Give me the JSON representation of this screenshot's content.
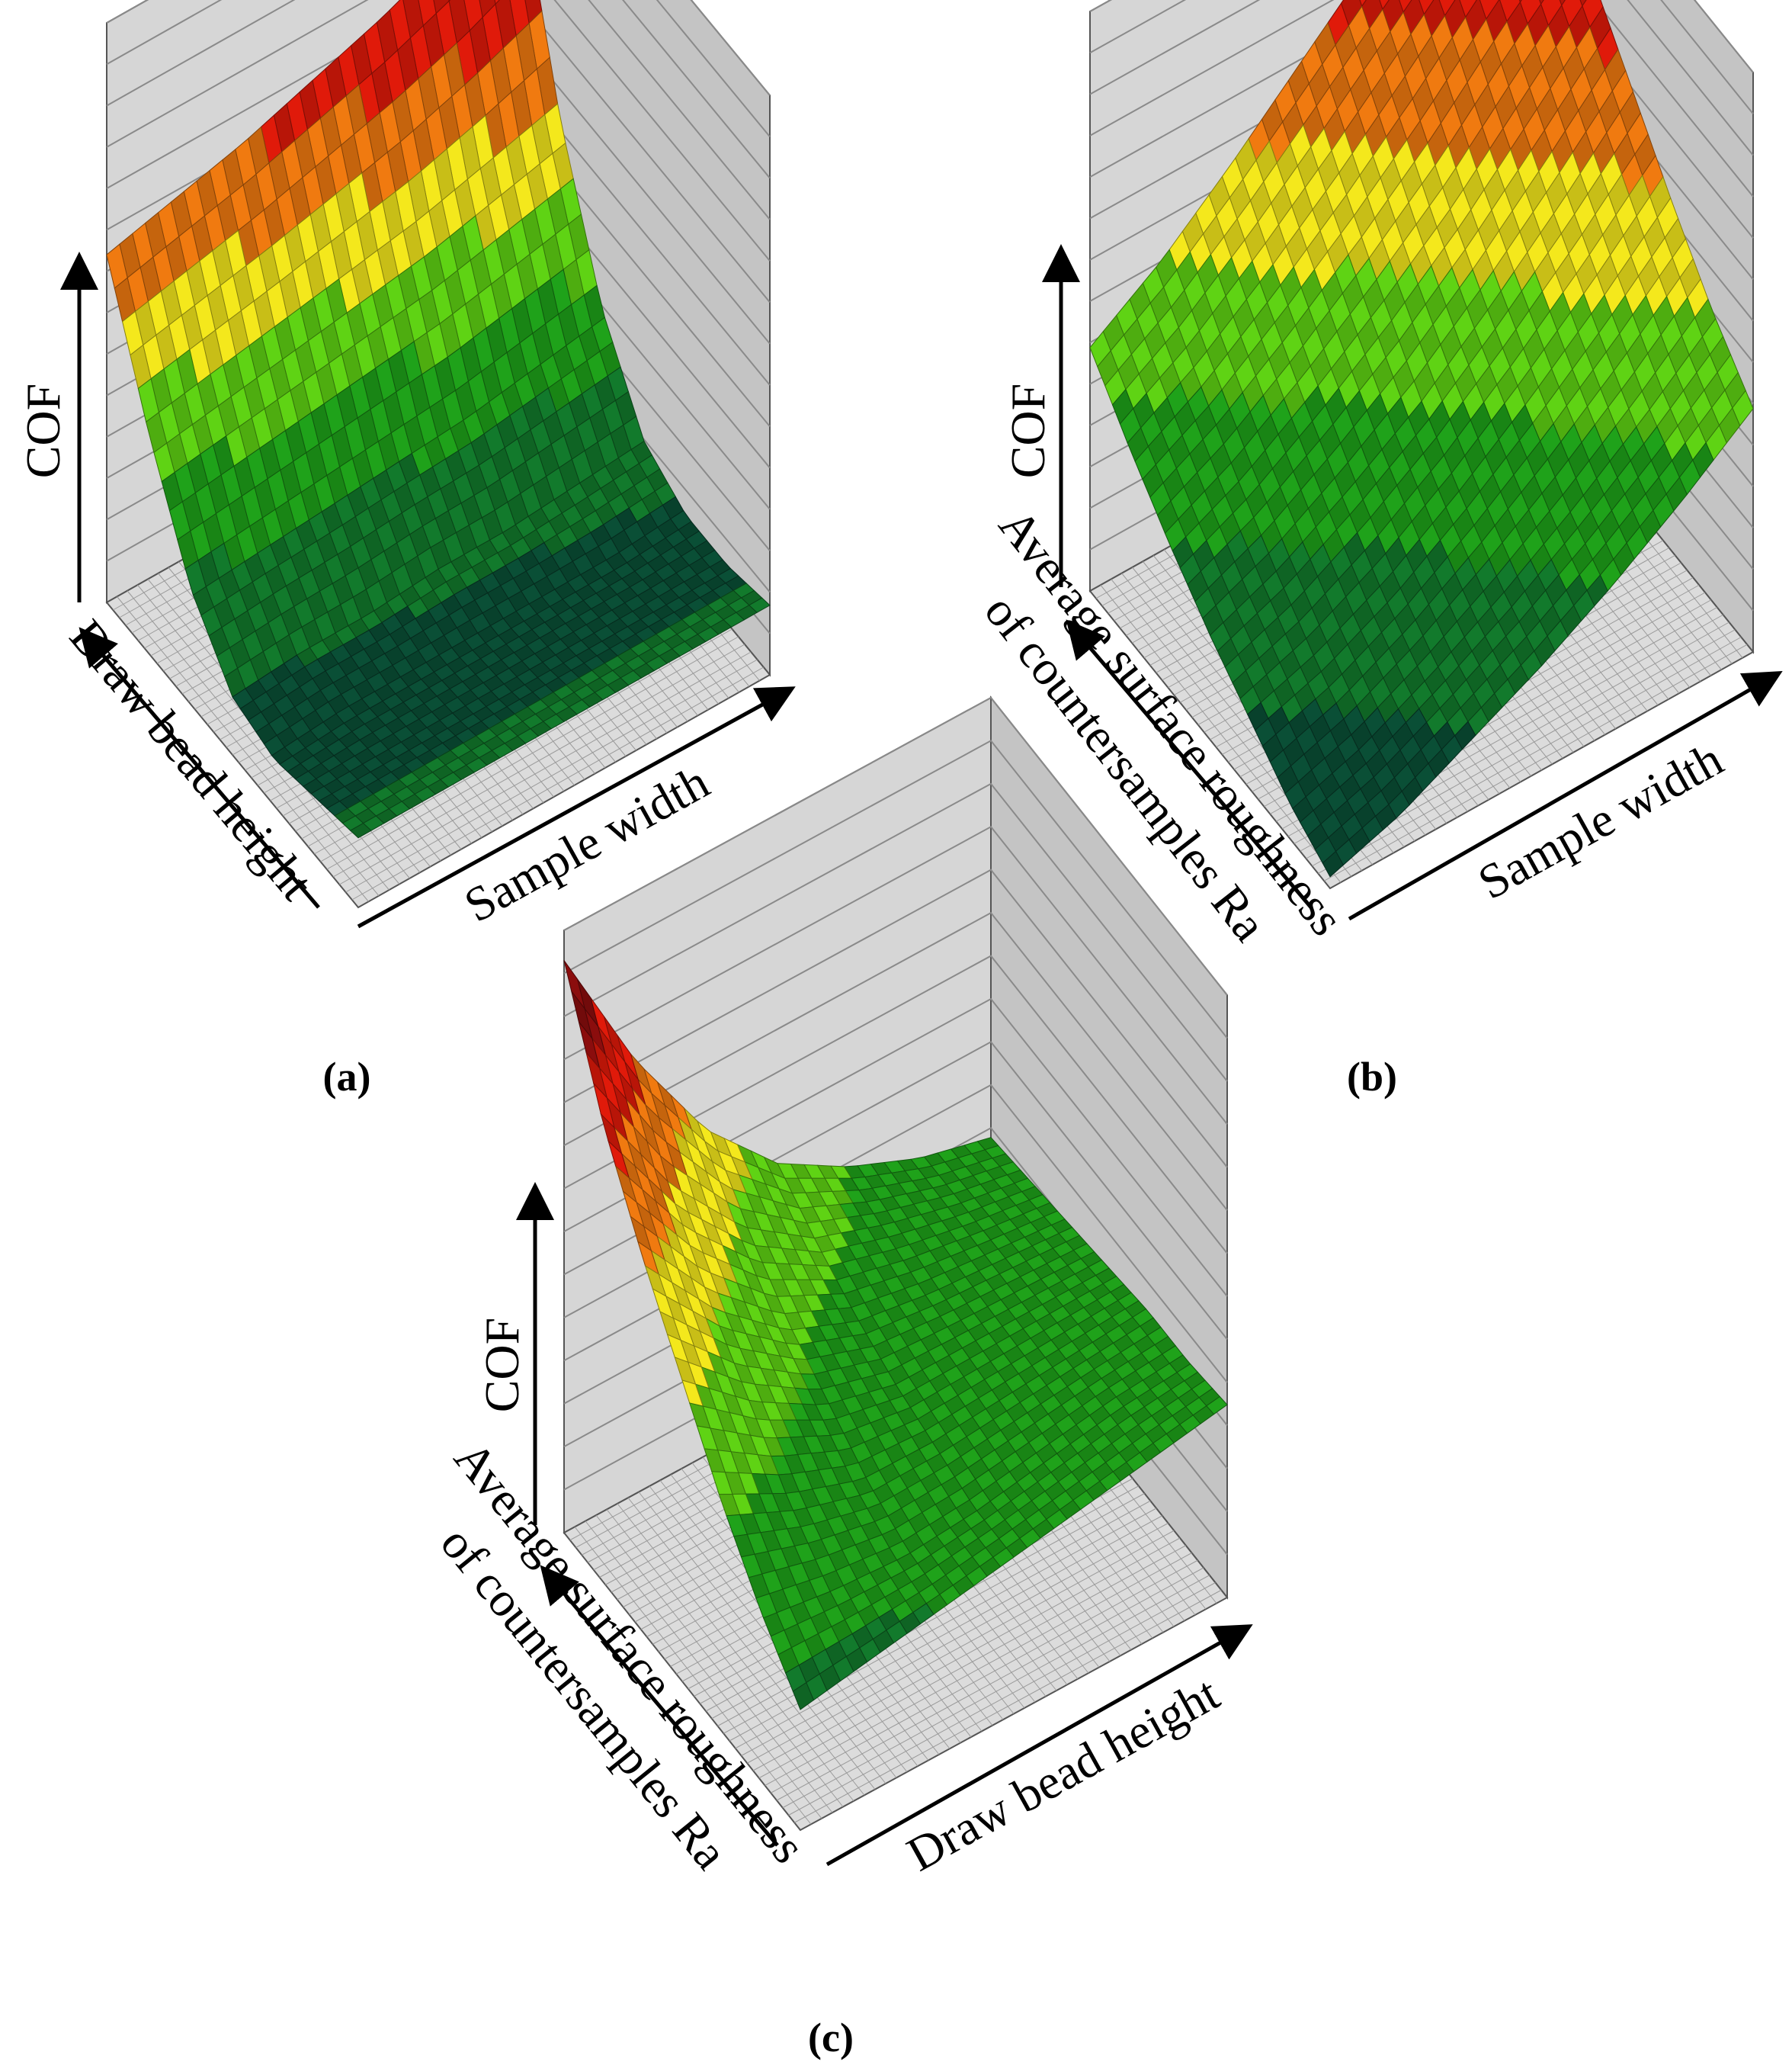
{
  "chart_data": [
    {
      "id": "a",
      "type": "surface",
      "caption": "(a)",
      "zlabel": "COF",
      "axis_left_label": "Draw bead height",
      "axis_right_label": "Sample width",
      "colorscale": [
        "#0a4f36",
        "#127a2c",
        "#1fa21a",
        "#5fd314",
        "#f4e81c",
        "#f07a10",
        "#e01a0a",
        "#8b0d0d"
      ],
      "description_of_trend": "COF rises strongly with draw bead height, nearly independent of sample width",
      "grid_z": [
        [
          0.12,
          0.12,
          0.12,
          0.12,
          0.12,
          0.12,
          0.12
        ],
        [
          0.1,
          0.1,
          0.1,
          0.1,
          0.1,
          0.1,
          0.1
        ],
        [
          0.08,
          0.09,
          0.09,
          0.09,
          0.09,
          0.09,
          0.1
        ],
        [
          0.1,
          0.11,
          0.11,
          0.12,
          0.12,
          0.13,
          0.14
        ],
        [
          0.2,
          0.21,
          0.22,
          0.23,
          0.24,
          0.26,
          0.28
        ],
        [
          0.38,
          0.4,
          0.42,
          0.44,
          0.46,
          0.49,
          0.52
        ],
        [
          0.6,
          0.63,
          0.66,
          0.7,
          0.74,
          0.79,
          0.86
        ]
      ]
    },
    {
      "id": "b",
      "type": "surface",
      "caption": "(b)",
      "zlabel": "COF",
      "axis_left_label": "Average surface roughness of countersamples Ra",
      "axis_left_lines": [
        "Average surface roughness",
        "of countersamples Ra"
      ],
      "axis_right_label": "Sample width",
      "colorscale": [
        "#0a4f36",
        "#127a2c",
        "#1fa21a",
        "#5fd314",
        "#f4e81c",
        "#f07a10",
        "#e01a0a",
        "#8b0d0d"
      ],
      "description_of_trend": "COF increases with both surface roughness and sample width, maximum at the far corner",
      "grid_z": [
        [
          0.02,
          0.06,
          0.12,
          0.18,
          0.25,
          0.33,
          0.42
        ],
        [
          0.06,
          0.1,
          0.16,
          0.23,
          0.31,
          0.4,
          0.5
        ],
        [
          0.12,
          0.16,
          0.22,
          0.3,
          0.39,
          0.49,
          0.6
        ],
        [
          0.18,
          0.23,
          0.3,
          0.38,
          0.48,
          0.59,
          0.71
        ],
        [
          0.25,
          0.31,
          0.39,
          0.48,
          0.58,
          0.7,
          0.82
        ],
        [
          0.33,
          0.4,
          0.49,
          0.59,
          0.7,
          0.82,
          0.92
        ],
        [
          0.42,
          0.5,
          0.6,
          0.71,
          0.82,
          0.92,
          1.0
        ]
      ]
    },
    {
      "id": "c",
      "type": "surface",
      "caption": "(c)",
      "zlabel": "COF",
      "axis_left_label": "Average surface roughness of countersamples Ra",
      "axis_left_lines": [
        "Average surface roughness",
        "of countersamples Ra"
      ],
      "axis_right_label": "Draw bead height",
      "colorscale": [
        "#0a4f36",
        "#127a2c",
        "#1fa21a",
        "#5fd314",
        "#f4e81c",
        "#f07a10",
        "#e01a0a",
        "#8b0d0d"
      ],
      "description_of_trend": "COF highest at high roughness and low draw bead height, saddle-shaped surface",
      "grid_z": [
        [
          0.2,
          0.22,
          0.24,
          0.26,
          0.28,
          0.3,
          0.32
        ],
        [
          0.28,
          0.26,
          0.25,
          0.26,
          0.28,
          0.3,
          0.31
        ],
        [
          0.38,
          0.32,
          0.28,
          0.28,
          0.29,
          0.3,
          0.31
        ],
        [
          0.5,
          0.4,
          0.33,
          0.3,
          0.3,
          0.3,
          0.3
        ],
        [
          0.62,
          0.48,
          0.38,
          0.33,
          0.31,
          0.3,
          0.29
        ],
        [
          0.76,
          0.58,
          0.45,
          0.37,
          0.33,
          0.3,
          0.28
        ],
        [
          0.95,
          0.72,
          0.54,
          0.42,
          0.35,
          0.3,
          0.27
        ]
      ]
    }
  ]
}
